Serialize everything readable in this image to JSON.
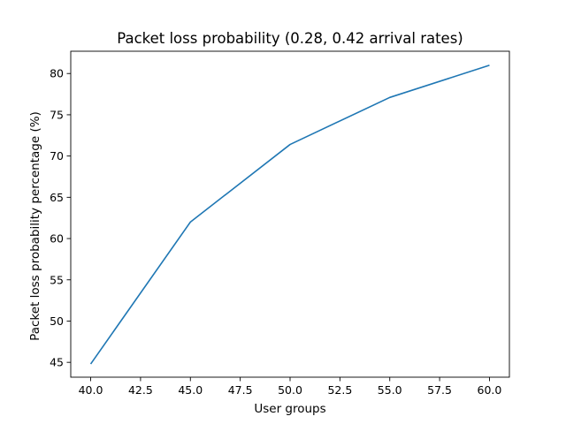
{
  "chart_data": {
    "type": "line",
    "title": "Packet loss probability (0.28, 0.42 arrival rates)",
    "xlabel": "User groups",
    "ylabel": "Packet loss probability percentage (%)",
    "xlim": [
      39.0,
      61.0
    ],
    "ylim": [
      43.2,
      82.7
    ],
    "xticks": [
      40.0,
      42.5,
      45.0,
      47.5,
      50.0,
      52.5,
      55.0,
      57.5,
      60.0
    ],
    "xtick_labels": [
      "40.0",
      "42.5",
      "45.0",
      "47.5",
      "50.0",
      "52.5",
      "55.0",
      "57.5",
      "60.0"
    ],
    "yticks": [
      45,
      50,
      55,
      60,
      65,
      70,
      75,
      80
    ],
    "ytick_labels": [
      "45",
      "50",
      "55",
      "60",
      "65",
      "70",
      "75",
      "80"
    ],
    "grid": false,
    "series": [
      {
        "color": "#1f77b4",
        "x": [
          40,
          45,
          50,
          55,
          60
        ],
        "y": [
          44.8,
          62.0,
          71.4,
          77.1,
          81.0
        ]
      }
    ]
  }
}
